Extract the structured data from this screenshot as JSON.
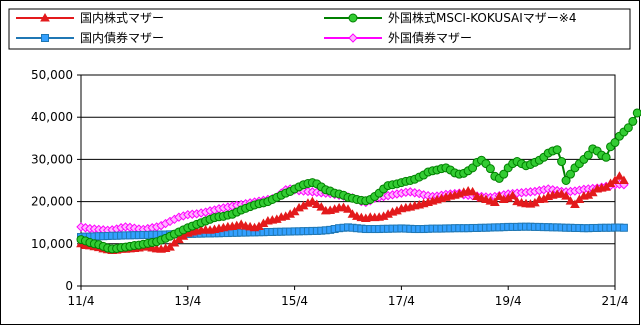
{
  "chart_data": {
    "type": "line",
    "ylim": [
      0,
      50000
    ],
    "y_ticks": [
      "50,000",
      "40,000",
      "30,000",
      "20,000",
      "10,000",
      "0"
    ],
    "y_tick_values": [
      50000,
      40000,
      30000,
      20000,
      10000,
      0
    ],
    "x_ticks": [
      "11/4",
      "13/4",
      "15/4",
      "17/4",
      "19/4",
      "21/4"
    ],
    "x_tick_months": [
      0,
      24,
      48,
      72,
      96,
      120
    ],
    "grid": true,
    "legend_position": "top",
    "series": [
      {
        "name": "国内株式マザー",
        "color": "#e31a1c",
        "marker": "triangle",
        "values": [
          10000,
          9600,
          9500,
          9300,
          9100,
          8800,
          8600,
          8400,
          8500,
          8700,
          8700,
          8800,
          8900,
          9000,
          9200,
          9300,
          9000,
          8800,
          8700,
          8900,
          9200,
          10200,
          11000,
          11800,
          12500,
          12800,
          13000,
          13200,
          13300,
          13200,
          13400,
          13600,
          13800,
          14000,
          14100,
          14300,
          14600,
          14200,
          14000,
          13800,
          14100,
          14800,
          15400,
          15600,
          15800,
          16300,
          16500,
          17000,
          17600,
          18500,
          19000,
          19600,
          20000,
          19300,
          18700,
          17800,
          17900,
          18200,
          18500,
          18600,
          18200,
          17000,
          16500,
          16200,
          16000,
          16300,
          16200,
          16300,
          16500,
          17000,
          17500,
          17800,
          18300,
          18500,
          18700,
          19000,
          19200,
          19500,
          19800,
          20100,
          20400,
          20700,
          21000,
          21300,
          21500,
          21800,
          22200,
          22500,
          22300,
          21200,
          20800,
          20500,
          20100,
          19800,
          21200,
          20500,
          20800,
          21400,
          20000,
          19700,
          19500,
          19400,
          19700,
          20500,
          20600,
          21200,
          21500,
          21700,
          21800,
          21300,
          20100,
          19300,
          20500,
          21300,
          21500,
          22100,
          23000,
          23200,
          23400,
          24300,
          25000,
          26000,
          25000
        ]
      },
      {
        "name": "外国株式MSCI-KOKUSAIマザー※4",
        "color": "#008000",
        "marker": "circle",
        "values": [
          11000,
          10700,
          10300,
          10000,
          9800,
          9400,
          9000,
          8800,
          8900,
          9100,
          9200,
          9400,
          9600,
          9700,
          9900,
          10100,
          10300,
          10500,
          10900,
          11300,
          11800,
          12300,
          12800,
          13300,
          13800,
          14200,
          14600,
          15000,
          15400,
          15800,
          16200,
          16400,
          16500,
          16800,
          17000,
          17500,
          18000,
          18400,
          18800,
          19200,
          19500,
          19700,
          20000,
          20500,
          21000,
          21500,
          22000,
          22400,
          23000,
          23500,
          24000,
          24300,
          24500,
          24200,
          23500,
          22800,
          22500,
          22000,
          21800,
          21500,
          21000,
          20800,
          20500,
          20300,
          20200,
          20500,
          21200,
          22000,
          23000,
          23800,
          24000,
          24200,
          24500,
          24800,
          25000,
          25300,
          25800,
          26300,
          27000,
          27300,
          27500,
          27800,
          28000,
          27500,
          26800,
          26500,
          26700,
          27300,
          28000,
          29300,
          29800,
          29000,
          27800,
          26000,
          25500,
          26500,
          28000,
          29000,
          29500,
          29000,
          28500,
          28800,
          29300,
          29800,
          30500,
          31500,
          32000,
          32300,
          29500,
          25000,
          26500,
          28000,
          29000,
          30000,
          31000,
          32500,
          32000,
          31000,
          30500,
          33000,
          34000,
          35500,
          36500,
          37500,
          39000,
          41000
        ]
      },
      {
        "name": "国内債券マザー",
        "color": "#1f77b4",
        "marker": "square",
        "values": [
          11600,
          11700,
          11700,
          11750,
          11800,
          11800,
          11850,
          11900,
          11900,
          11950,
          12000,
          12000,
          12050,
          12050,
          12100,
          12100,
          12150,
          12150,
          12200,
          12200,
          12250,
          12250,
          12300,
          12300,
          12350,
          12350,
          12400,
          12400,
          12450,
          12450,
          12500,
          12500,
          12550,
          12550,
          12600,
          12600,
          12650,
          12650,
          12700,
          12700,
          12750,
          12750,
          12800,
          12800,
          12850,
          12850,
          12900,
          12900,
          12950,
          12950,
          13000,
          13000,
          13050,
          13050,
          13100,
          13200,
          13300,
          13500,
          13700,
          13800,
          13900,
          13800,
          13700,
          13600,
          13500,
          13500,
          13500,
          13500,
          13550,
          13550,
          13600,
          13600,
          13650,
          13600,
          13550,
          13500,
          13500,
          13500,
          13550,
          13600,
          13600,
          13600,
          13650,
          13650,
          13700,
          13700,
          13700,
          13700,
          13750,
          13750,
          13800,
          13800,
          13850,
          13900,
          13900,
          13950,
          14000,
          14000,
          14000,
          14050,
          14050,
          14050,
          14000,
          14000,
          13950,
          13950,
          13900,
          13900,
          13850,
          13800,
          13800,
          13750,
          13750,
          13700,
          13700,
          13750,
          13750,
          13800,
          13800,
          13800,
          13850,
          13850,
          13800
        ]
      },
      {
        "name": "外国債券マザー",
        "color": "#ff00ff",
        "marker": "diamond",
        "values": [
          14000,
          13800,
          13600,
          13500,
          13400,
          13300,
          13200,
          13300,
          13500,
          13800,
          14000,
          13900,
          13700,
          13500,
          13400,
          13600,
          13800,
          14000,
          14300,
          14800,
          15300,
          15800,
          16300,
          16600,
          16900,
          17000,
          17100,
          17300,
          17500,
          17800,
          18000,
          18300,
          18500,
          18700,
          18900,
          19100,
          19300,
          19500,
          19700,
          19900,
          20100,
          20300,
          20500,
          20700,
          21000,
          22000,
          22800,
          23000,
          22800,
          22600,
          22500,
          22400,
          22300,
          22200,
          22100,
          22000,
          21900,
          21700,
          21500,
          21300,
          21100,
          20900,
          20500,
          20000,
          19800,
          20200,
          20800,
          21000,
          21200,
          21400,
          21600,
          21800,
          22000,
          22200,
          22300,
          22100,
          21900,
          21600,
          21400,
          21200,
          21300,
          21500,
          21700,
          21800,
          21900,
          22000,
          21600,
          21500,
          21400,
          21300,
          21200,
          21100,
          21000,
          21200,
          21400,
          21600,
          21800,
          21900,
          22000,
          22100,
          22200,
          22300,
          22400,
          22600,
          22800,
          23000,
          22800,
          22600,
          22400,
          22300,
          22400,
          22500,
          22700,
          22900,
          23000,
          23100,
          23200,
          23400,
          23600,
          23800,
          24000,
          24100,
          24000
        ]
      }
    ]
  }
}
